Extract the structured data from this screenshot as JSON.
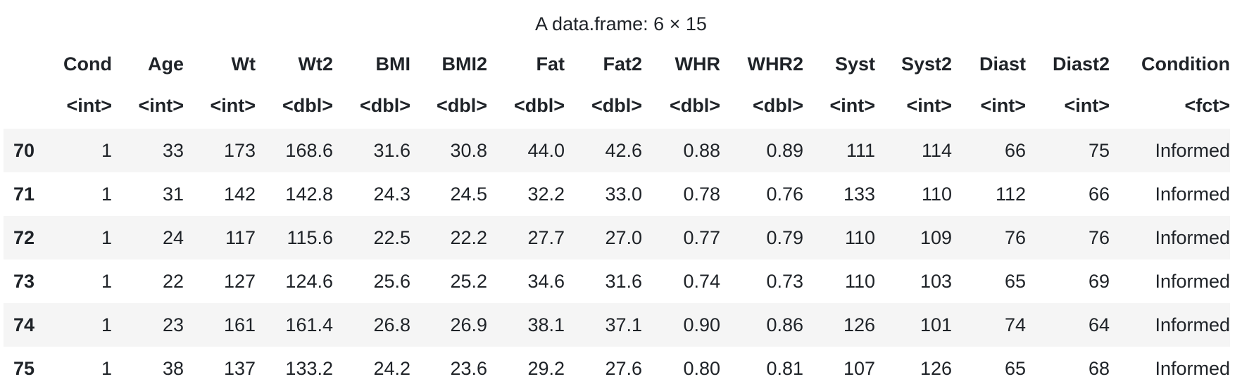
{
  "caption": "A data.frame: 6 × 15",
  "columns": [
    "Cond",
    "Age",
    "Wt",
    "Wt2",
    "BMI",
    "BMI2",
    "Fat",
    "Fat2",
    "WHR",
    "WHR2",
    "Syst",
    "Syst2",
    "Diast",
    "Diast2",
    "Condition"
  ],
  "types": [
    "<int>",
    "<int>",
    "<int>",
    "<dbl>",
    "<dbl>",
    "<dbl>",
    "<dbl>",
    "<dbl>",
    "<dbl>",
    "<dbl>",
    "<int>",
    "<int>",
    "<int>",
    "<int>",
    "<fct>"
  ],
  "rows": [
    {
      "name": "70",
      "cells": [
        "1",
        "33",
        "173",
        "168.6",
        "31.6",
        "30.8",
        "44.0",
        "42.6",
        "0.88",
        "0.89",
        "111",
        "114",
        "66",
        "75",
        "Informed"
      ]
    },
    {
      "name": "71",
      "cells": [
        "1",
        "31",
        "142",
        "142.8",
        "24.3",
        "24.5",
        "32.2",
        "33.0",
        "0.78",
        "0.76",
        "133",
        "110",
        "112",
        "66",
        "Informed"
      ]
    },
    {
      "name": "72",
      "cells": [
        "1",
        "24",
        "117",
        "115.6",
        "22.5",
        "22.2",
        "27.7",
        "27.0",
        "0.77",
        "0.79",
        "110",
        "109",
        "76",
        "76",
        "Informed"
      ]
    },
    {
      "name": "73",
      "cells": [
        "1",
        "22",
        "127",
        "124.6",
        "25.6",
        "25.2",
        "34.6",
        "31.6",
        "0.74",
        "0.73",
        "110",
        "103",
        "65",
        "69",
        "Informed"
      ]
    },
    {
      "name": "74",
      "cells": [
        "1",
        "23",
        "161",
        "161.4",
        "26.8",
        "26.9",
        "38.1",
        "37.1",
        "0.90",
        "0.86",
        "126",
        "101",
        "74",
        "64",
        "Informed"
      ]
    },
    {
      "name": "75",
      "cells": [
        "1",
        "38",
        "137",
        "133.2",
        "24.2",
        "23.6",
        "29.2",
        "27.6",
        "0.80",
        "0.81",
        "107",
        "126",
        "65",
        "68",
        "Informed"
      ]
    }
  ]
}
